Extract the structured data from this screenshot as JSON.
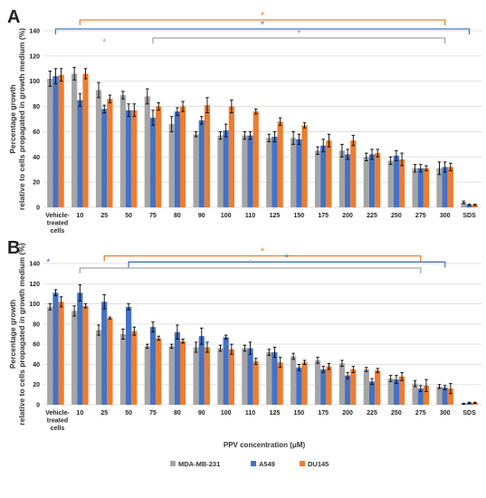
{
  "colors": {
    "MDA-MB-231": "#a5a5a5",
    "A549": "#4472c4",
    "DU145": "#ed7d31",
    "gridline": "#d9d9d9"
  },
  "xlabel": "PPV concentration (μM)",
  "legend": [
    "MDA-MB-231",
    "A549",
    "DU145"
  ],
  "chart_data": [
    {
      "type": "bar",
      "panel": "A",
      "categories": [
        "Vehicle-treated cells",
        "10",
        "25",
        "50",
        "75",
        "80",
        "90",
        "100",
        "110",
        "125",
        "150",
        "175",
        "200",
        "225",
        "250",
        "275",
        "300",
        "SDS"
      ],
      "ylabel": "Percentage growth relative to cells propagated in growth medium (%)",
      "ylim": [
        0,
        140
      ],
      "yticks": [
        0,
        20,
        40,
        60,
        80,
        100,
        120,
        140
      ],
      "grid": true,
      "series": [
        {
          "name": "MDA-MB-231",
          "values": [
            102,
            106,
            93,
            89,
            88,
            66,
            58,
            57,
            57,
            55,
            55,
            45,
            45,
            40,
            37,
            31,
            31,
            4
          ],
          "errors": [
            6,
            5,
            6,
            3,
            6,
            6,
            2,
            3,
            3,
            3,
            5,
            3,
            5,
            3,
            3,
            3,
            5,
            1
          ]
        },
        {
          "name": "A549",
          "values": [
            104,
            85,
            78,
            77,
            71,
            76,
            69,
            61,
            57,
            56,
            54,
            49,
            42,
            42,
            41,
            31,
            32,
            2
          ],
          "errors": [
            6,
            5,
            3,
            5,
            6,
            3,
            3,
            5,
            3,
            4,
            4,
            5,
            4,
            4,
            4,
            3,
            4,
            0.5
          ]
        },
        {
          "name": "DU145",
          "values": [
            105,
            106,
            86,
            77,
            80,
            80,
            81,
            80,
            76,
            68,
            65,
            53,
            53,
            43,
            38,
            31,
            32,
            2
          ],
          "errors": [
            5,
            4,
            3,
            5,
            3,
            4,
            6,
            5,
            2,
            3,
            2,
            5,
            4,
            3,
            5,
            2,
            3,
            0.5
          ]
        }
      ],
      "significance_brackets": [
        {
          "series": "DU145",
          "from": "10",
          "to": "300",
          "label": "*"
        },
        {
          "series": "A549",
          "from": "Vehicle-treated cells",
          "to": "SDS",
          "label": "*"
        },
        {
          "series": "MDA-MB-231",
          "from": "75",
          "to": "300",
          "label": "*"
        },
        {
          "series": "MDA-MB-231",
          "at": "25",
          "label": "*"
        }
      ]
    },
    {
      "type": "bar",
      "panel": "B",
      "categories": [
        "Vehicle-treated cells",
        "10",
        "25",
        "50",
        "75",
        "80",
        "90",
        "100",
        "110",
        "125",
        "150",
        "175",
        "200",
        "225",
        "250",
        "275",
        "300",
        "SDS"
      ],
      "ylabel": "Percentage growth relative to cells propagated in growth medium (%)",
      "ylim": [
        0,
        140
      ],
      "yticks": [
        0,
        20,
        40,
        60,
        80,
        100,
        120,
        140
      ],
      "grid": true,
      "series": [
        {
          "name": "MDA-MB-231",
          "values": [
            97,
            93,
            74,
            70,
            58,
            58,
            57,
            56,
            56,
            52,
            48,
            44,
            41,
            35,
            26,
            21,
            18,
            1
          ],
          "errors": [
            3,
            5,
            5,
            5,
            2,
            2,
            5,
            3,
            3,
            3,
            3,
            3,
            3,
            2,
            3,
            3,
            2,
            0.5
          ]
        },
        {
          "name": "A549",
          "values": [
            111,
            111,
            102,
            97,
            77,
            72,
            68,
            67,
            56,
            52,
            37,
            35,
            29,
            23,
            25,
            16,
            17,
            2
          ],
          "errors": [
            3,
            8,
            7,
            3,
            5,
            7,
            8,
            2,
            6,
            5,
            3,
            3,
            3,
            3,
            4,
            3,
            2,
            0.5
          ]
        },
        {
          "name": "DU145",
          "values": [
            102,
            98,
            86,
            73,
            66,
            63,
            57,
            55,
            43,
            42,
            42,
            38,
            35,
            34,
            28,
            19,
            16,
            2
          ],
          "errors": [
            5,
            2,
            1,
            4,
            2,
            2,
            5,
            5,
            3,
            5,
            2,
            3,
            3,
            2,
            4,
            6,
            5,
            0.5
          ]
        }
      ],
      "significance_brackets": [
        {
          "series": "DU145",
          "from": "25",
          "to": "275",
          "label": "*"
        },
        {
          "series": "A549",
          "from": "50",
          "to": "300",
          "label": "*"
        },
        {
          "series": "MDA-MB-231",
          "from": "10",
          "to": "275",
          "label": "*"
        },
        {
          "series": "A549",
          "at": "Vehicle-treated cells",
          "label": "*"
        }
      ]
    }
  ]
}
